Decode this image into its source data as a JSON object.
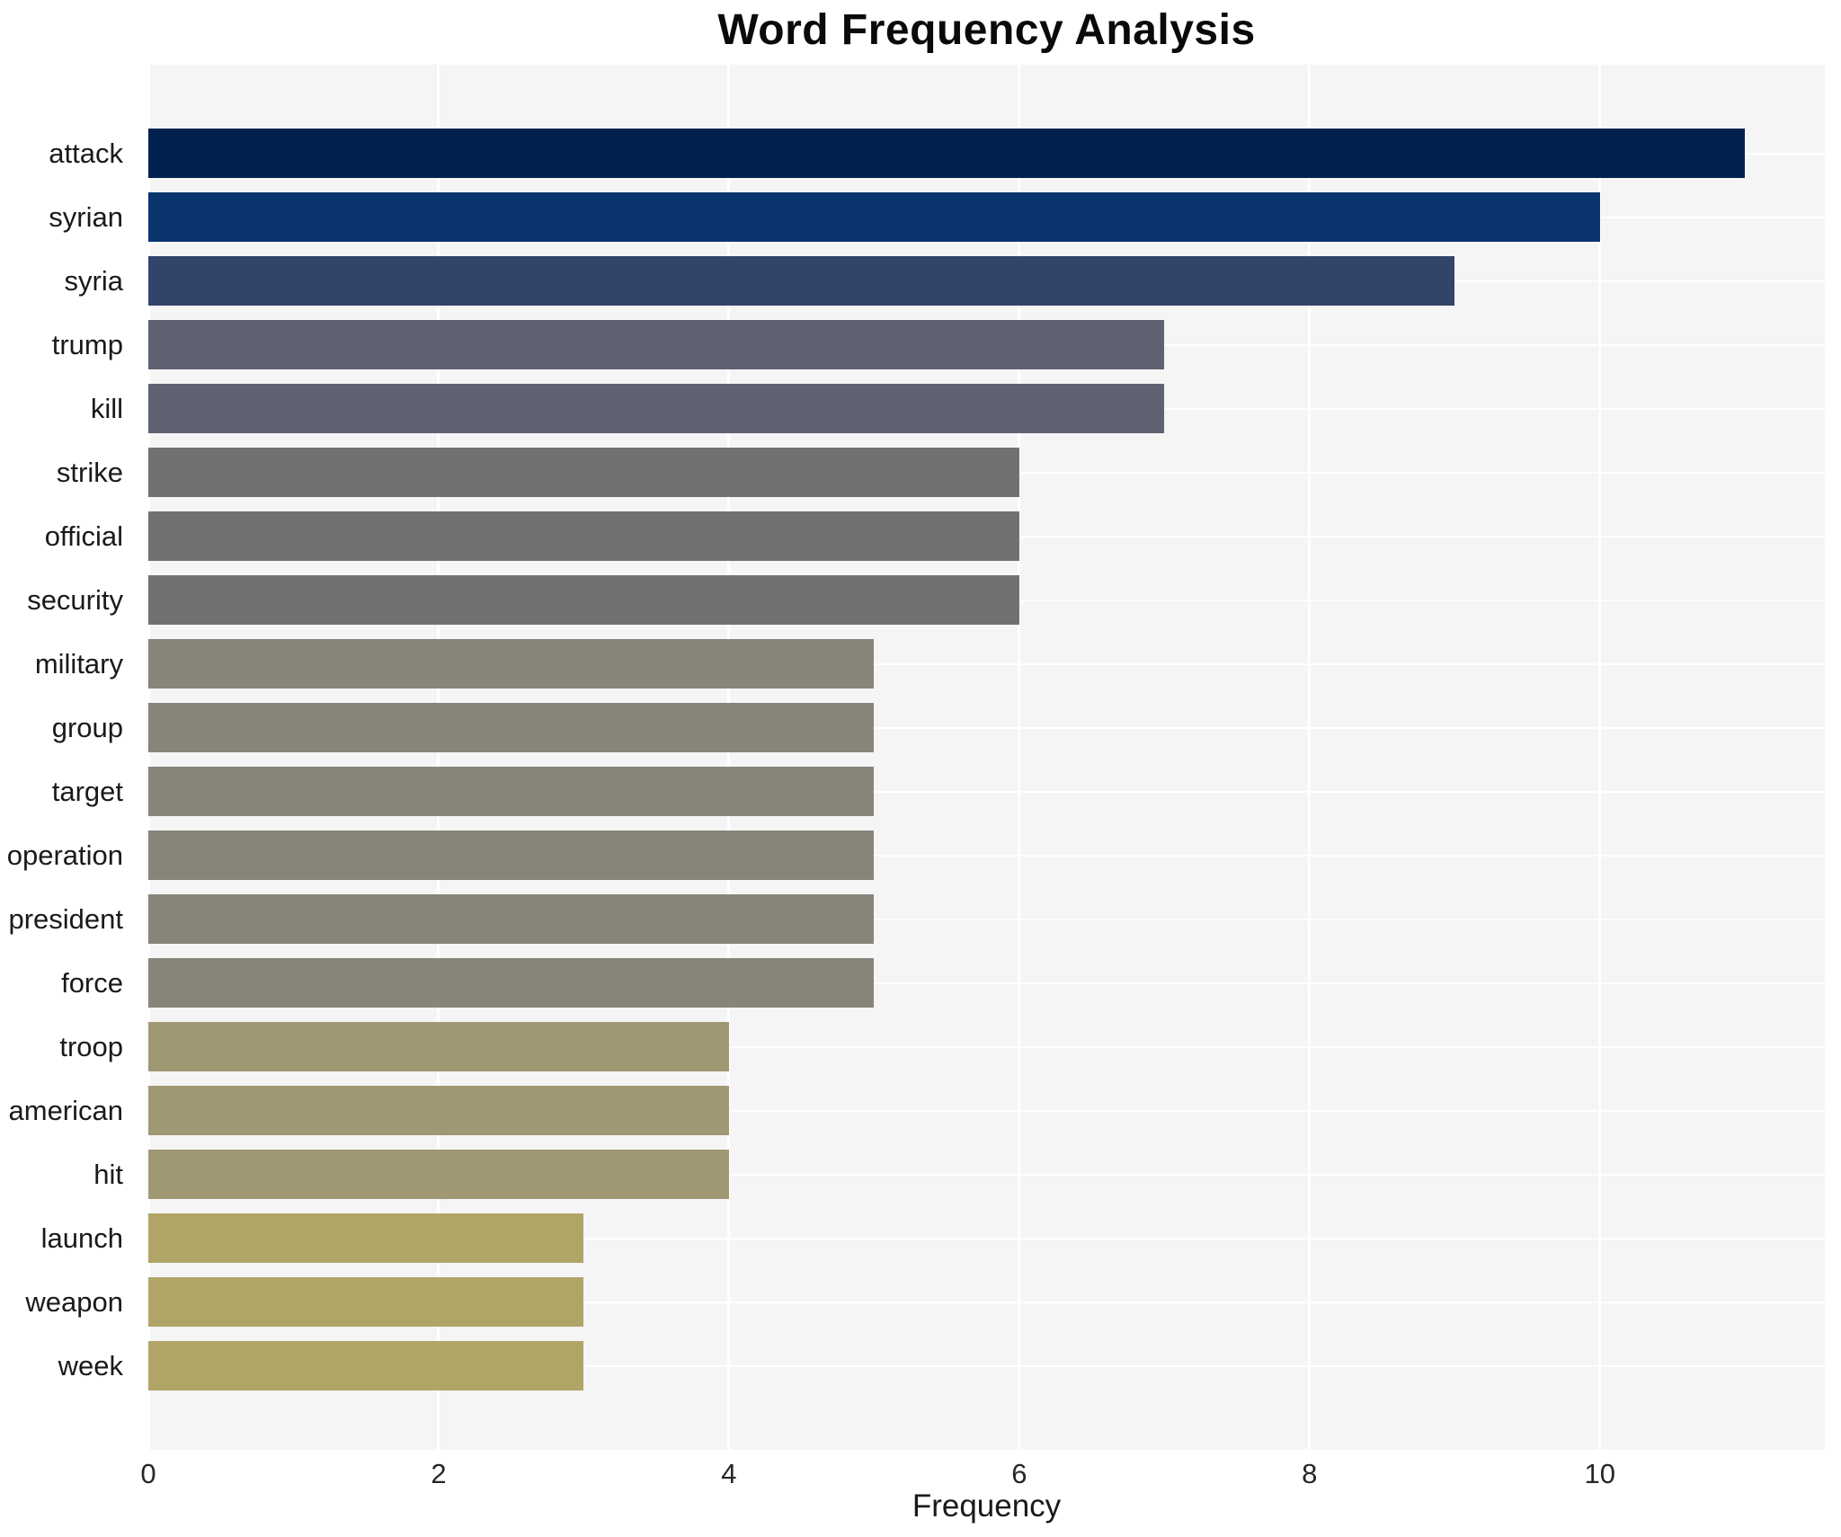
{
  "chart_data": {
    "type": "bar",
    "orientation": "horizontal",
    "title": "Word Frequency Analysis",
    "xlabel": "Frequency",
    "ylabel": "",
    "categories": [
      "attack",
      "syrian",
      "syria",
      "trump",
      "kill",
      "strike",
      "official",
      "security",
      "military",
      "group",
      "target",
      "operation",
      "president",
      "force",
      "troop",
      "american",
      "hit",
      "launch",
      "weapon",
      "week"
    ],
    "values": [
      11,
      10,
      9,
      7,
      7,
      6,
      6,
      6,
      5,
      5,
      5,
      5,
      5,
      5,
      4,
      4,
      4,
      3,
      3,
      3
    ],
    "bar_colors": [
      "#01224e",
      "#0a356f",
      "#32446a",
      "#5e6270",
      "#5e6270",
      "#717174",
      "#717174",
      "#717174",
      "#87857a",
      "#87857a",
      "#87857a",
      "#87857a",
      "#87857a",
      "#87857a",
      "#a09773",
      "#a09773",
      "#a09773",
      "#b1a467",
      "#b1a467",
      "#b1a467"
    ],
    "xticks": [
      0,
      2,
      4,
      6,
      8,
      10
    ],
    "xlim": [
      0,
      11.55
    ],
    "grid": true,
    "legend": false,
    "plot_background": "#f5f5f6",
    "gridline_color": "#ffffff",
    "text_color": "#1a1a1a"
  }
}
